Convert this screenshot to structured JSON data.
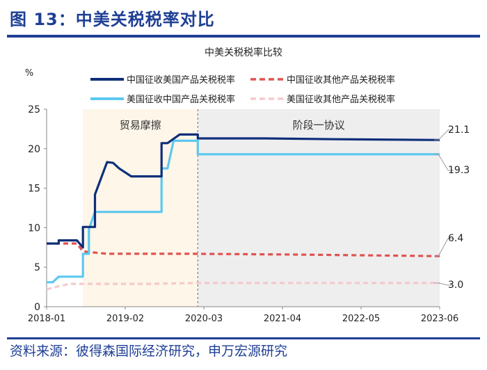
{
  "figure_title": "图 13：中美关税税率对比",
  "source": "资料来源：彼得森国际经济研究，申万宏源研究",
  "colors": {
    "title": "#1f3f95",
    "trade_war_region": "#fdf6e9",
    "phase_one_region": "#eeeeef",
    "axis": "#888888"
  },
  "chart_data": {
    "type": "line",
    "title": "中美关税税率比较",
    "ylabel": "%",
    "xlabel": "",
    "ylim": [
      0,
      25
    ],
    "yticks": [
      0,
      5,
      10,
      15,
      20,
      25
    ],
    "xticks": [
      "2018-01",
      "2019-02",
      "2020-03",
      "2021-04",
      "2022-05",
      "2023-06"
    ],
    "xlim": [
      "2018-01",
      "2023-06"
    ],
    "grid": false,
    "legend_position": "top",
    "regions": [
      {
        "label": "贸易摩擦",
        "from": "2018-07",
        "to": "2020-02",
        "color": "#fdf6e9"
      },
      {
        "label": "阶段一协议",
        "from": "2020-02",
        "to": "2023-06",
        "color": "#eeeeef"
      }
    ],
    "end_labels": [
      "21.1",
      "19.3",
      "6.4",
      "3.0"
    ],
    "series": [
      {
        "name": "中国征收美国产品关税税率",
        "color": "#0e2f7a",
        "dash": "solid",
        "end_label": "21.1",
        "points": [
          [
            "2018-01",
            8.0
          ],
          [
            "2018-03",
            8.0
          ],
          [
            "2018-03",
            8.4
          ],
          [
            "2018-06",
            8.4
          ],
          [
            "2018-07",
            7.5
          ],
          [
            "2018-07",
            10.1
          ],
          [
            "2018-09",
            10.1
          ],
          [
            "2018-09",
            14.2
          ],
          [
            "2018-11",
            18.3
          ],
          [
            "2018-12",
            18.2
          ],
          [
            "2019-01",
            17.5
          ],
          [
            "2019-03",
            16.5
          ],
          [
            "2019-06",
            16.5
          ],
          [
            "2019-08",
            16.5
          ],
          [
            "2019-08",
            20.7
          ],
          [
            "2019-09",
            20.7
          ],
          [
            "2019-11",
            21.8
          ],
          [
            "2020-01",
            21.8
          ],
          [
            "2020-02",
            21.8
          ],
          [
            "2020-02",
            21.3
          ],
          [
            "2021-01",
            21.3
          ],
          [
            "2022-01",
            21.2
          ],
          [
            "2023-06",
            21.1
          ]
        ]
      },
      {
        "name": "中国征收其他产品关税税率",
        "color": "#e0524f",
        "dash": "dashed",
        "end_label": "6.4",
        "points": [
          [
            "2018-01",
            8.0
          ],
          [
            "2018-06",
            8.0
          ],
          [
            "2018-07",
            7.0
          ],
          [
            "2018-11",
            6.7
          ],
          [
            "2020-01",
            6.7
          ],
          [
            "2021-06",
            6.6
          ],
          [
            "2023-06",
            6.4
          ]
        ]
      },
      {
        "name": "美国征收中国产品关税税率",
        "color": "#5cc8f0",
        "dash": "solid",
        "end_label": "19.3",
        "points": [
          [
            "2018-01",
            3.1
          ],
          [
            "2018-02",
            3.1
          ],
          [
            "2018-03",
            3.8
          ],
          [
            "2018-06",
            3.8
          ],
          [
            "2018-07",
            3.8
          ],
          [
            "2018-07",
            6.7
          ],
          [
            "2018-08",
            6.7
          ],
          [
            "2018-08",
            9.8
          ],
          [
            "2018-09",
            12.0
          ],
          [
            "2019-06",
            12.0
          ],
          [
            "2019-08",
            12.0
          ],
          [
            "2019-08",
            17.5
          ],
          [
            "2019-09",
            17.5
          ],
          [
            "2019-10",
            21.0
          ],
          [
            "2020-02",
            21.0
          ],
          [
            "2020-02",
            19.3
          ],
          [
            "2023-06",
            19.3
          ]
        ]
      },
      {
        "name": "美国征收其他产品关税税率",
        "color": "#f5c9cb",
        "dash": "dashed",
        "end_label": "3.0",
        "points": [
          [
            "2018-01",
            2.2
          ],
          [
            "2018-03",
            2.6
          ],
          [
            "2018-05",
            2.9
          ],
          [
            "2019-06",
            2.9
          ],
          [
            "2020-02",
            3.0
          ],
          [
            "2023-06",
            3.0
          ]
        ]
      }
    ]
  }
}
